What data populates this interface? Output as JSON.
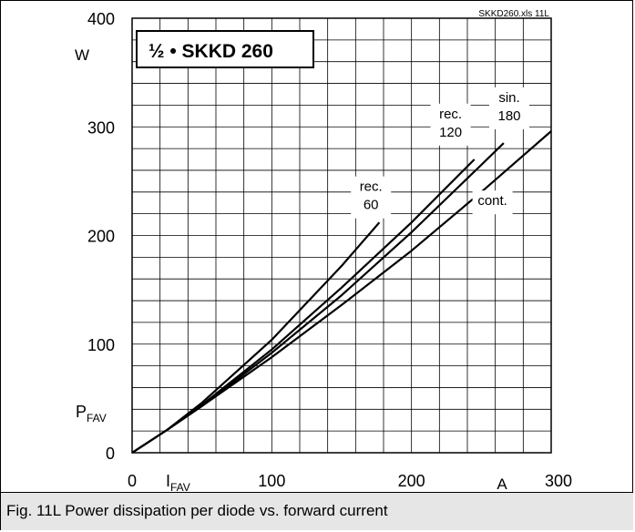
{
  "caption": "Fig. 11L Power dissipation per diode vs. forward current",
  "chart_data": {
    "type": "line",
    "title": "½ • SKKD 260",
    "file_label": "SKKD260.xls 11L",
    "xlabel": "I",
    "xlabel_sub": "FAV",
    "xunit": "A",
    "ylabel": "P",
    "ylabel_sub": "FAV",
    "yunit": "W",
    "xlim": [
      0,
      300
    ],
    "ylim": [
      0,
      400
    ],
    "xticks": [
      0,
      100,
      200,
      300
    ],
    "yticks": [
      0,
      100,
      200,
      300,
      400
    ],
    "grid": true,
    "series": [
      {
        "name": "cont.",
        "x": [
          0,
          25,
          50,
          100,
          150,
          200,
          250,
          300
        ],
        "y": [
          0,
          21,
          43,
          88,
          136,
          186,
          240,
          296
        ],
        "label_lines": [
          "cont."
        ],
        "label_at": [
          258,
          238
        ]
      },
      {
        "name": "sin. 180",
        "x": [
          0,
          25,
          50,
          100,
          150,
          200,
          250,
          266
        ],
        "y": [
          0,
          21,
          43,
          92,
          145,
          203,
          265,
          285
        ],
        "label_lines": [
          "sin.",
          "180"
        ],
        "label_at": [
          270,
          333
        ]
      },
      {
        "name": "rec. 120",
        "x": [
          0,
          25,
          50,
          100,
          150,
          200,
          245
        ],
        "y": [
          0,
          21,
          44,
          95,
          152,
          212,
          270
        ],
        "label_lines": [
          "rec.",
          "120"
        ],
        "label_at": [
          228,
          318
        ]
      },
      {
        "name": "rec. 60",
        "x": [
          0,
          25,
          50,
          100,
          150,
          177
        ],
        "y": [
          0,
          21,
          46,
          104,
          172,
          212
        ],
        "label_lines": [
          "rec.",
          "60"
        ],
        "label_at": [
          171,
          251
        ]
      }
    ]
  }
}
